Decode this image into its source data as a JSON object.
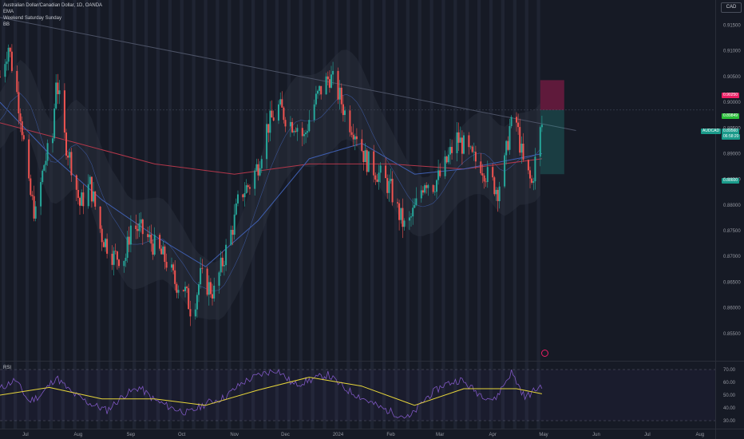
{
  "legend": {
    "symbol_line": "Australian Dollar/Canadian Dollar, 1D, OANDA",
    "indicators": [
      "EMA",
      "Weekend Saturday Sunday",
      "BB"
    ]
  },
  "currency_label": "CAD",
  "price_tags": {
    "red_zone": "0.90250",
    "green_level": "0.89849",
    "symbol": "AUDCAD",
    "last_price": "0.89560",
    "countdown": "06:58:20",
    "lower_level": "0.88600"
  },
  "rsi": {
    "title": "RSI"
  },
  "price_axis_ticks": [
    "0.91500",
    "0.91000",
    "0.90500",
    "0.90000",
    "0.89500",
    "0.89000",
    "0.88500",
    "0.88000",
    "0.87500",
    "0.87000",
    "0.86500",
    "0.86000",
    "0.85500"
  ],
  "rsi_axis_ticks": [
    "70.00",
    "60.00",
    "50.00",
    "40.00",
    "30.00"
  ],
  "time_axis_ticks": [
    "Jul",
    "Aug",
    "Sep",
    "Oct",
    "Nov",
    "Dec",
    "2024",
    "Feb",
    "Mar",
    "Apr",
    "May",
    "Jun",
    "Jul",
    "Aug"
  ],
  "colors": {
    "background": "#161a25",
    "up": "#26a69a",
    "down": "#ef5350",
    "ema_red": "#b2374a",
    "ema_blue": "#3f5fb0",
    "rsi_line": "#7e57c2",
    "rsi_ma": "#e6d53a",
    "weekend_band": "#1f2432"
  },
  "chart_data": {
    "type": "candlestick",
    "title": "Australian Dollar/Canadian Dollar, 1D, OANDA",
    "y_range": [
      0.85,
      0.9185
    ],
    "x_range_months": [
      "Jun 2023",
      "Aug 2024"
    ],
    "close_path": [
      [
        "2023-06-16",
        0.905
      ],
      [
        "2023-06-21",
        0.911
      ],
      [
        "2023-06-28",
        0.898
      ],
      [
        "2023-07-03",
        0.883
      ],
      [
        "2023-07-07",
        0.878
      ],
      [
        "2023-07-12",
        0.888
      ],
      [
        "2023-07-17",
        0.893
      ],
      [
        "2023-07-19",
        0.905
      ],
      [
        "2023-07-24",
        0.893
      ],
      [
        "2023-07-28",
        0.888
      ],
      [
        "2023-08-02",
        0.88
      ],
      [
        "2023-08-08",
        0.884
      ],
      [
        "2023-08-15",
        0.874
      ],
      [
        "2023-08-22",
        0.87
      ],
      [
        "2023-08-29",
        0.87
      ],
      [
        "2023-09-01",
        0.876
      ],
      [
        "2023-09-07",
        0.875
      ],
      [
        "2023-09-15",
        0.872
      ],
      [
        "2023-09-22",
        0.869
      ],
      [
        "2023-09-27",
        0.865
      ],
      [
        "2023-10-02",
        0.864
      ],
      [
        "2023-10-07",
        0.859
      ],
      [
        "2023-10-12",
        0.866
      ],
      [
        "2023-10-17",
        0.864
      ],
      [
        "2023-10-20",
        0.863
      ],
      [
        "2023-10-26",
        0.87
      ],
      [
        "2023-11-01",
        0.877
      ],
      [
        "2023-11-04",
        0.882
      ],
      [
        "2023-11-10",
        0.884
      ],
      [
        "2023-11-15",
        0.888
      ],
      [
        "2023-11-20",
        0.895
      ],
      [
        "2023-11-27",
        0.899
      ],
      [
        "2023-12-04",
        0.896
      ],
      [
        "2023-12-07",
        0.896
      ],
      [
        "2023-12-12",
        0.893
      ],
      [
        "2023-12-16",
        0.898
      ],
      [
        "2023-12-21",
        0.902
      ],
      [
        "2023-12-27",
        0.905
      ],
      [
        "2023-12-29",
        0.904
      ],
      [
        "2024-01-02",
        0.901
      ],
      [
        "2024-01-06",
        0.897
      ],
      [
        "2024-01-12",
        0.894
      ],
      [
        "2024-01-17",
        0.889
      ],
      [
        "2024-01-22",
        0.887
      ],
      [
        "2024-01-28",
        0.885
      ],
      [
        "2024-02-01",
        0.883
      ],
      [
        "2024-02-05",
        0.879
      ],
      [
        "2024-02-10",
        0.875
      ],
      [
        "2024-02-16",
        0.88
      ],
      [
        "2024-02-21",
        0.885
      ],
      [
        "2024-02-26",
        0.884
      ],
      [
        "2024-03-02",
        0.886
      ],
      [
        "2024-03-07",
        0.89
      ],
      [
        "2024-03-11",
        0.893
      ],
      [
        "2024-03-16",
        0.891
      ],
      [
        "2024-03-20",
        0.889
      ],
      [
        "2024-03-25",
        0.888
      ],
      [
        "2024-03-30",
        0.885
      ],
      [
        "2024-04-04",
        0.883
      ],
      [
        "2024-04-08",
        0.888
      ],
      [
        "2024-04-11",
        0.895
      ],
      [
        "2024-04-15",
        0.896
      ],
      [
        "2024-04-19",
        0.888
      ],
      [
        "2024-04-24",
        0.884
      ],
      [
        "2024-04-28",
        0.893
      ],
      [
        "2024-04-30",
        0.8956
      ]
    ],
    "ema_slow": [
      [
        "2023-06-16",
        0.896
      ],
      [
        "2023-08-01",
        0.892
      ],
      [
        "2023-09-15",
        0.888
      ],
      [
        "2023-11-01",
        0.886
      ],
      [
        "2023-12-15",
        0.888
      ],
      [
        "2024-02-01",
        0.888
      ],
      [
        "2024-03-15",
        0.887
      ],
      [
        "2024-04-30",
        0.889
      ]
    ],
    "ema_fast": [
      [
        "2023-06-16",
        0.9
      ],
      [
        "2023-07-15",
        0.89
      ],
      [
        "2023-08-15",
        0.881
      ],
      [
        "2023-09-15",
        0.874
      ],
      [
        "2023-10-15",
        0.868
      ],
      [
        "2023-11-15",
        0.877
      ],
      [
        "2023-12-15",
        0.889
      ],
      [
        "2024-01-15",
        0.892
      ],
      [
        "2024-02-15",
        0.886
      ],
      [
        "2024-03-15",
        0.887
      ],
      [
        "2024-04-15",
        0.889
      ],
      [
        "2024-04-30",
        0.89
      ]
    ],
    "trendline": [
      [
        "2023-06-16",
        0.9165
      ],
      [
        "2024-05-20",
        0.8945
      ]
    ],
    "rsi": {
      "ylim": [
        25,
        75
      ],
      "guide_levels": [
        70,
        30
      ],
      "line": [
        [
          "2023-06-16",
          55
        ],
        [
          "2023-06-25",
          62
        ],
        [
          "2023-07-03",
          45
        ],
        [
          "2023-07-10",
          50
        ],
        [
          "2023-07-19",
          64
        ],
        [
          "2023-07-28",
          52
        ],
        [
          "2023-08-07",
          44
        ],
        [
          "2023-08-18",
          38
        ],
        [
          "2023-08-28",
          50
        ],
        [
          "2023-09-06",
          56
        ],
        [
          "2023-09-15",
          46
        ],
        [
          "2023-09-25",
          40
        ],
        [
          "2023-10-05",
          36
        ],
        [
          "2023-10-16",
          44
        ],
        [
          "2023-10-26",
          48
        ],
        [
          "2023-11-06",
          60
        ],
        [
          "2023-11-16",
          66
        ],
        [
          "2023-11-26",
          70
        ],
        [
          "2023-12-06",
          58
        ],
        [
          "2023-12-16",
          62
        ],
        [
          "2023-12-26",
          66
        ],
        [
          "2024-01-05",
          55
        ],
        [
          "2024-01-15",
          48
        ],
        [
          "2024-01-26",
          40
        ],
        [
          "2024-02-05",
          35
        ],
        [
          "2024-02-12",
          32
        ],
        [
          "2024-02-22",
          48
        ],
        [
          "2024-03-03",
          58
        ],
        [
          "2024-03-13",
          62
        ],
        [
          "2024-03-23",
          52
        ],
        [
          "2024-04-02",
          46
        ],
        [
          "2024-04-12",
          68
        ],
        [
          "2024-04-20",
          48
        ],
        [
          "2024-04-30",
          58
        ]
      ],
      "ma": [
        [
          "2023-06-16",
          50
        ],
        [
          "2023-07-15",
          56
        ],
        [
          "2023-08-15",
          47
        ],
        [
          "2023-09-15",
          47
        ],
        [
          "2023-10-15",
          42
        ],
        [
          "2023-11-15",
          54
        ],
        [
          "2023-12-15",
          64
        ],
        [
          "2024-01-15",
          57
        ],
        [
          "2024-02-15",
          42
        ],
        [
          "2024-03-15",
          55
        ],
        [
          "2024-04-15",
          55
        ],
        [
          "2024-04-30",
          51
        ]
      ]
    }
  }
}
